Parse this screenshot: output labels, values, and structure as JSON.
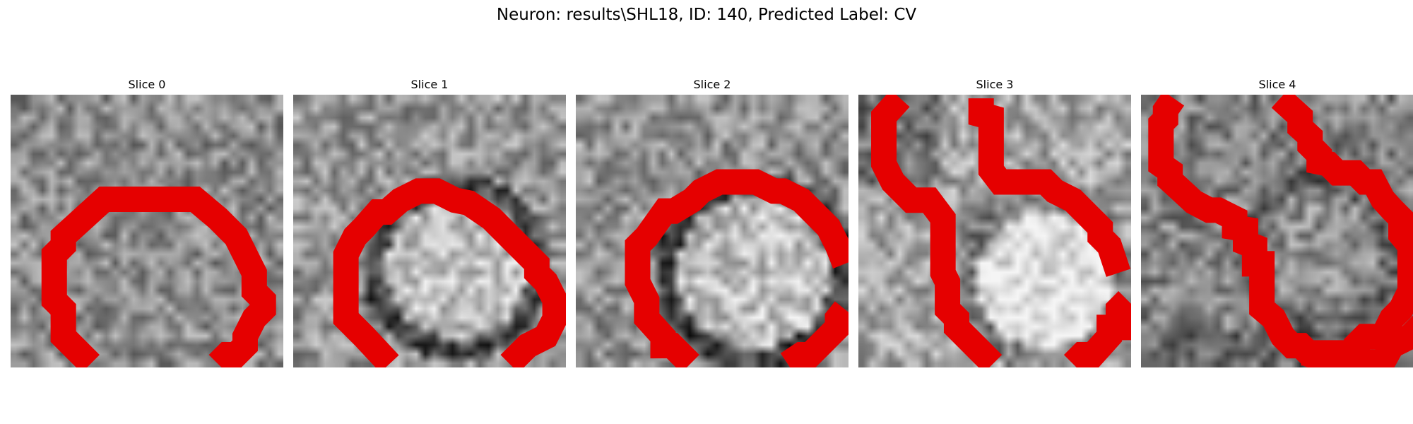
{
  "figure": {
    "title": "Neuron: results\\SHL18, ID: 140, Predicted Label: CV"
  },
  "panels": [
    {
      "title": "Slice 0"
    },
    {
      "title": "Slice 1"
    },
    {
      "title": "Slice 2"
    },
    {
      "title": "Slice 3"
    },
    {
      "title": "Slice 4"
    }
  ],
  "colors": {
    "contour": "#e50000",
    "background": "#ffffff"
  }
}
